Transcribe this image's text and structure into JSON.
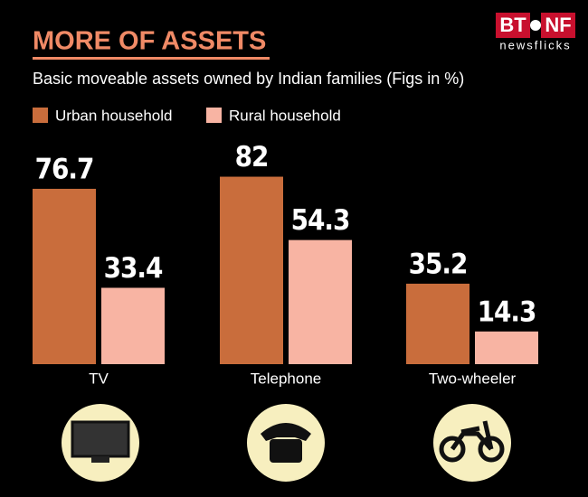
{
  "logo": {
    "left": "BT",
    "right": "NF",
    "tagline": "newsflicks"
  },
  "chart_data": {
    "type": "bar",
    "title": "MORE OF ASSETS",
    "subtitle": "Basic moveable assets owned by Indian families (Figs in %)",
    "categories": [
      "TV",
      "Telephone",
      "Two-wheeler"
    ],
    "series": [
      {
        "name": "Urban household",
        "color": "#c96d3c",
        "values": [
          76.7,
          82,
          35.2
        ]
      },
      {
        "name": "Rural household",
        "color": "#f8b4a3",
        "values": [
          33.4,
          54.3,
          14.3
        ]
      }
    ]
  }
}
